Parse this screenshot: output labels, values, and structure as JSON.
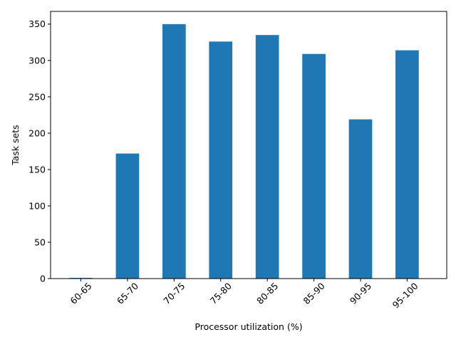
{
  "chart_data": {
    "type": "bar",
    "title": "",
    "xlabel": "Processor utilization (%)",
    "ylabel": "Task sets",
    "categories": [
      "60-65",
      "65-70",
      "70-75",
      "75-80",
      "80-85",
      "85-90",
      "90-95",
      "95-100"
    ],
    "values": [
      1,
      172,
      350,
      326,
      335,
      309,
      219,
      314
    ],
    "ylim": [
      0,
      367.5
    ],
    "yticks": [
      0,
      50,
      100,
      150,
      200,
      250,
      300,
      350
    ],
    "bar_color": "#1f77b4",
    "grid": false,
    "legend": "none",
    "xtick_rotation_deg": 45
  }
}
